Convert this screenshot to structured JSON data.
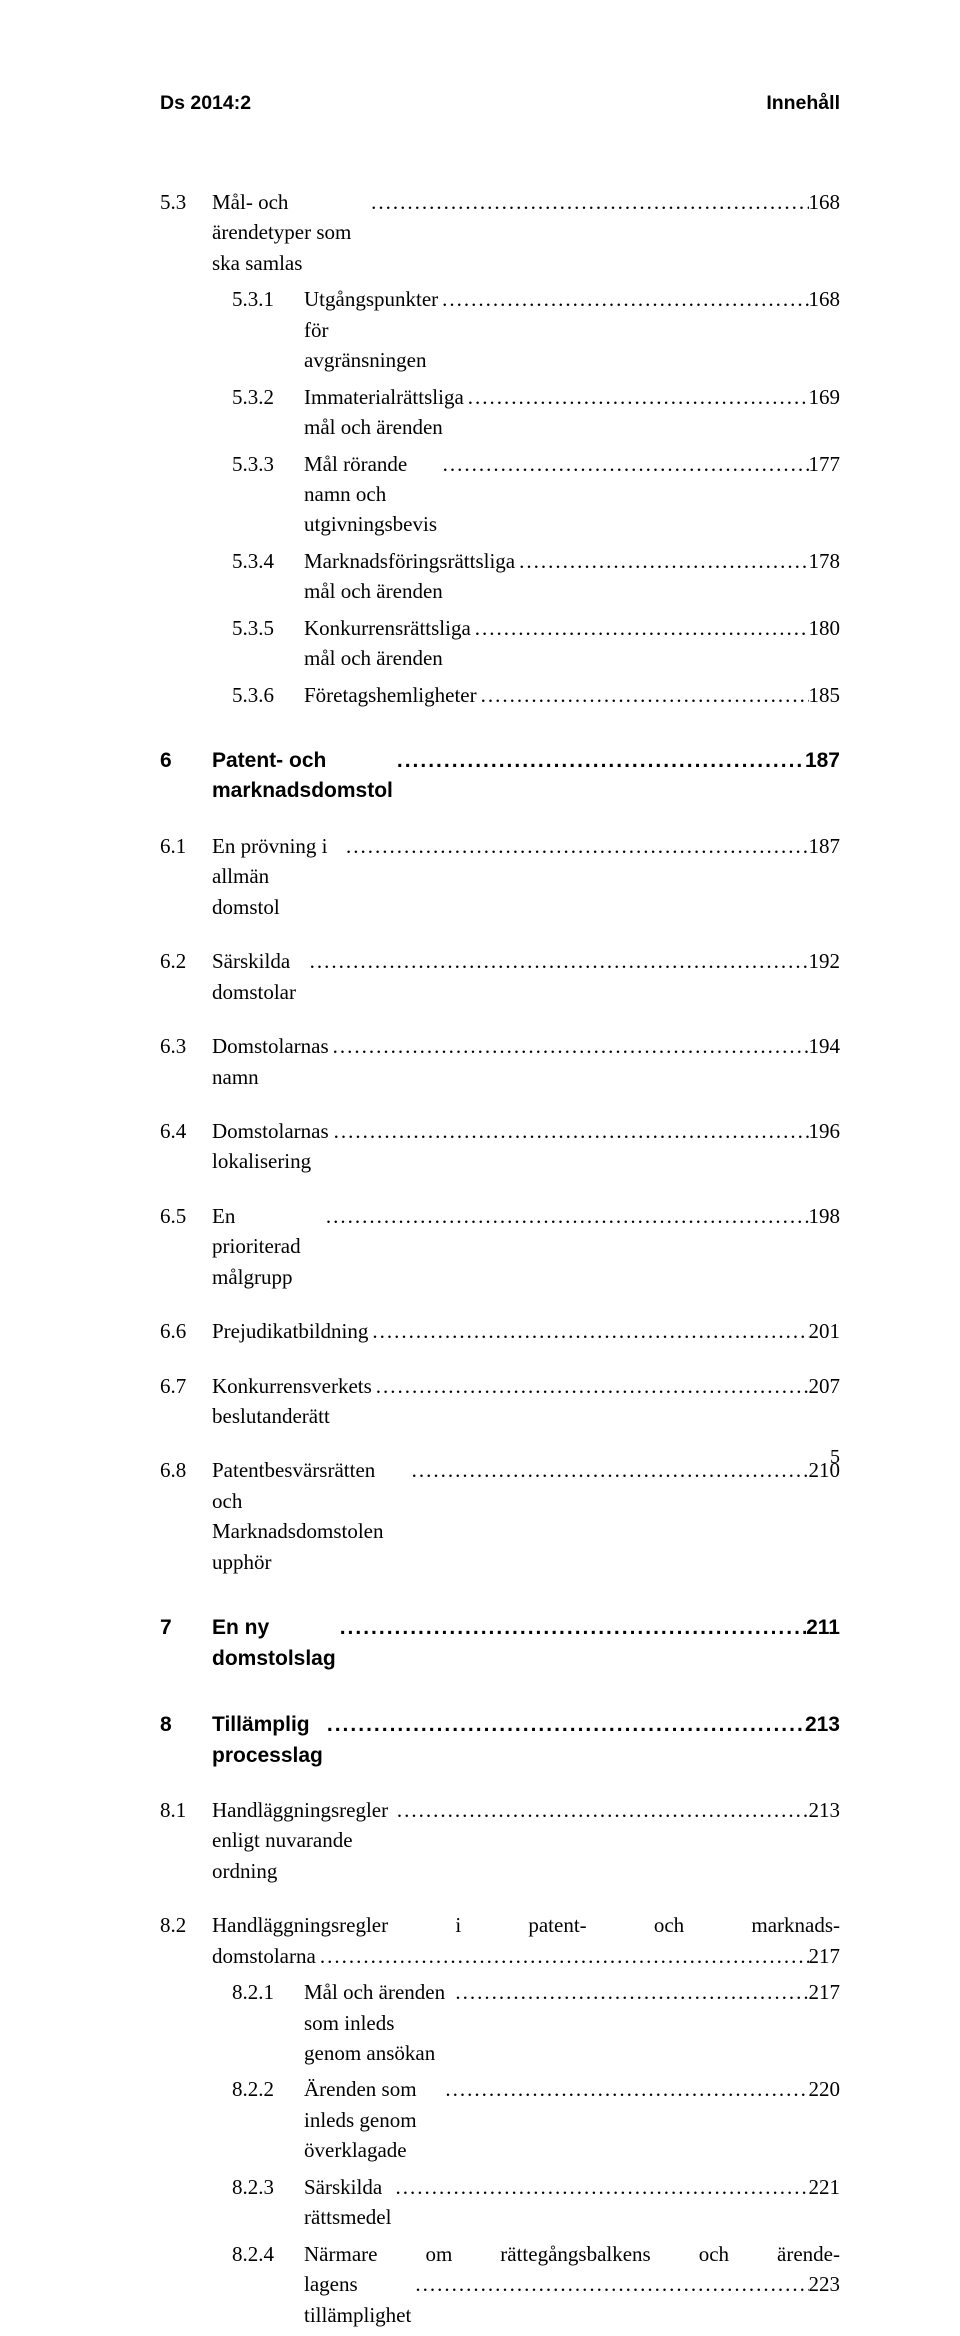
{
  "header": {
    "left": "Ds 2014:2",
    "right": "Innehåll"
  },
  "leader": "..........................................................................................................................",
  "rows": [
    {
      "type": "row",
      "cls": "indent-1",
      "num_cls": "toc-num",
      "num": "5.3",
      "text": "Mål- och ärendetyper som ska samlas",
      "page": "168",
      "gap": "gap-sm"
    },
    {
      "type": "row",
      "cls": "indent-2",
      "num_cls": "toc-num-sub",
      "num": "5.3.1",
      "text": "Utgångspunkter för avgränsningen",
      "page": "168",
      "gap": ""
    },
    {
      "type": "row",
      "cls": "indent-2",
      "num_cls": "toc-num-sub",
      "num": "5.3.2",
      "text": "Immaterialrättsliga mål och ärenden",
      "page": "169",
      "gap": ""
    },
    {
      "type": "row",
      "cls": "indent-2",
      "num_cls": "toc-num-sub",
      "num": "5.3.3",
      "text": "Mål rörande namn och utgivningsbevis",
      "page": "177",
      "gap": ""
    },
    {
      "type": "row",
      "cls": "indent-2",
      "num_cls": "toc-num-sub",
      "num": "5.3.4",
      "text": "Marknadsföringsrättsliga mål och ärenden",
      "page": "178",
      "gap": ""
    },
    {
      "type": "row",
      "cls": "indent-2",
      "num_cls": "toc-num-sub",
      "num": "5.3.5",
      "text": "Konkurrensrättsliga mål och ärenden",
      "page": "180",
      "gap": ""
    },
    {
      "type": "row",
      "cls": "indent-2",
      "num_cls": "toc-num-sub",
      "num": "5.3.6",
      "text": "Företagshemligheter",
      "page": "185",
      "gap": ""
    },
    {
      "type": "row",
      "cls": "indent-1 bold-row",
      "num_cls": "toc-num",
      "num": "6",
      "text": "Patent- och marknadsdomstol",
      "page": "187",
      "gap": "gap-lg"
    },
    {
      "type": "row",
      "cls": "indent-1",
      "num_cls": "toc-num",
      "num": "6.1",
      "text": "En prövning i allmän domstol",
      "page": "187",
      "gap": "gap-md"
    },
    {
      "type": "row",
      "cls": "indent-1",
      "num_cls": "toc-num",
      "num": "6.2",
      "text": "Särskilda domstolar",
      "page": "192",
      "gap": "gap-md"
    },
    {
      "type": "row",
      "cls": "indent-1",
      "num_cls": "toc-num",
      "num": "6.3",
      "text": "Domstolarnas namn",
      "page": "194",
      "gap": "gap-md"
    },
    {
      "type": "row",
      "cls": "indent-1",
      "num_cls": "toc-num",
      "num": "6.4",
      "text": "Domstolarnas lokalisering",
      "page": "196",
      "gap": "gap-md"
    },
    {
      "type": "row",
      "cls": "indent-1",
      "num_cls": "toc-num",
      "num": "6.5",
      "text": "En prioriterad målgrupp",
      "page": "198",
      "gap": "gap-md"
    },
    {
      "type": "row",
      "cls": "indent-1",
      "num_cls": "toc-num",
      "num": "6.6",
      "text": "Prejudikatbildning",
      "page": "201",
      "gap": "gap-md"
    },
    {
      "type": "row",
      "cls": "indent-1",
      "num_cls": "toc-num",
      "num": "6.7",
      "text": "Konkurrensverkets beslutanderätt",
      "page": "207",
      "gap": "gap-md"
    },
    {
      "type": "row",
      "cls": "indent-1",
      "num_cls": "toc-num",
      "num": "6.8",
      "text": "Patentbesvärsrätten och Marknadsdomstolen upphör",
      "page": "210",
      "gap": "gap-md"
    },
    {
      "type": "row",
      "cls": "indent-1 bold-row",
      "num_cls": "toc-num",
      "num": "7",
      "text": "En ny domstolslag",
      "page": "211",
      "gap": "gap-lg"
    },
    {
      "type": "row",
      "cls": "indent-1 bold-row",
      "num_cls": "toc-num",
      "num": "8",
      "text": "Tillämplig processlag",
      "page": "213",
      "gap": "gap-lg"
    },
    {
      "type": "row",
      "cls": "indent-1",
      "num_cls": "toc-num",
      "num": "8.1",
      "text": "Handläggningsregler enligt nuvarande ordning",
      "page": "213",
      "gap": "gap-md"
    },
    {
      "type": "multi",
      "cls": "indent-1",
      "num_cls": "toc-num",
      "num": "8.2",
      "line1_left": "Handläggningsregler",
      "line1_mid": "i",
      "line1_mid2": "patent-",
      "line1_mid3": "och",
      "line1_right": "marknads-",
      "line2": "domstolarna",
      "page": "217",
      "gap": "gap-md"
    },
    {
      "type": "row",
      "cls": "indent-2",
      "num_cls": "toc-num-sub",
      "num": "8.2.1",
      "text": "Mål och ärenden som inleds genom ansökan",
      "page": "217",
      "gap": ""
    },
    {
      "type": "row",
      "cls": "indent-2",
      "num_cls": "toc-num-sub",
      "num": "8.2.2",
      "text": "Ärenden som inleds genom överklagade",
      "page": "220",
      "gap": ""
    },
    {
      "type": "row",
      "cls": "indent-2",
      "num_cls": "toc-num-sub",
      "num": "8.2.3",
      "text": "Särskilda rättsmedel",
      "page": "221",
      "gap": ""
    },
    {
      "type": "multi2",
      "cls": "indent-2",
      "num_cls": "toc-num-sub",
      "num": "8.2.4",
      "line1_a": "Närmare",
      "line1_b": "om",
      "line1_c": "rättegångsbalkens",
      "line1_d": "och",
      "line1_e": "ärende-",
      "line2": "lagens tillämplighet",
      "page": "223",
      "gap": ""
    }
  ],
  "page_number": "5"
}
